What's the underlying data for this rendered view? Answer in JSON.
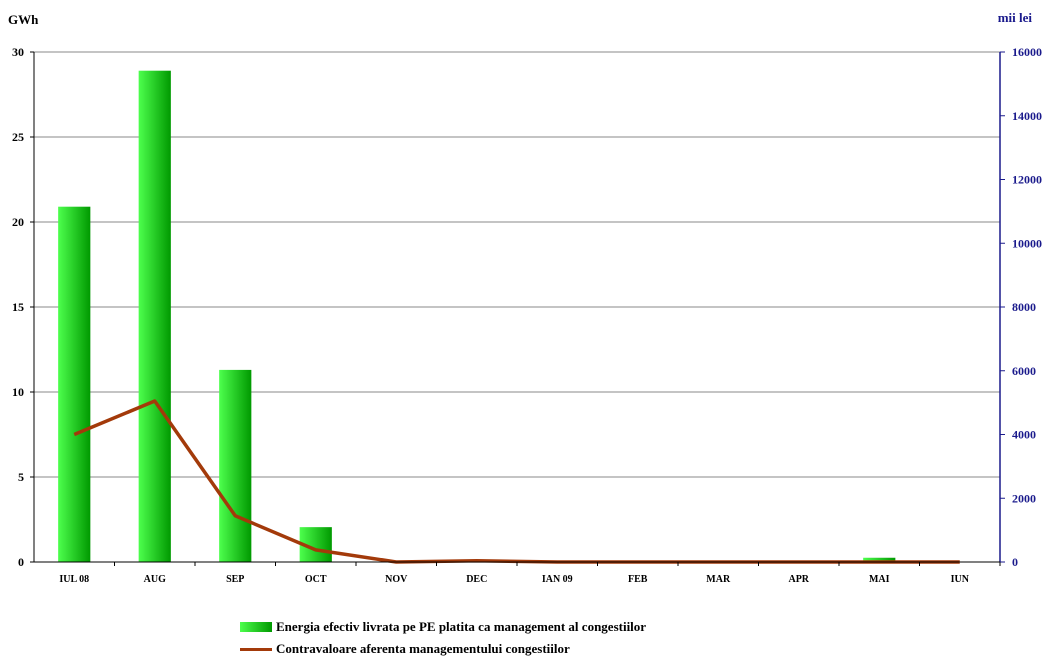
{
  "chart_data": {
    "type": "bar",
    "categories": [
      "IUL 08",
      "AUG",
      "SEP",
      "OCT",
      "NOV",
      "DEC",
      "IAN 09",
      "FEB",
      "MAR",
      "APR",
      "MAI",
      "IUN"
    ],
    "series": [
      {
        "name": "Energia efectiv livrata pe PE platita ca management al congestiilor",
        "type": "bar",
        "axis": "left",
        "values": [
          20.9,
          28.9,
          11.3,
          2.05,
          0,
          0,
          0,
          0,
          0,
          0,
          0.25,
          0
        ]
      },
      {
        "name": "Contravaloare aferenta managementului congestiilor",
        "type": "line",
        "axis": "right",
        "values": [
          4000,
          5050,
          1450,
          380,
          0,
          40,
          0,
          0,
          0,
          0,
          0,
          0
        ]
      }
    ],
    "yleft_unit": "GWh",
    "yright_unit": "mii lei",
    "ylim_left": [
      0,
      30
    ],
    "yticks_left": [
      0,
      5,
      10,
      15,
      20,
      25,
      30
    ],
    "ylim_right": [
      0,
      16000
    ],
    "yticks_right": [
      0,
      2000,
      4000,
      6000,
      8000,
      10000,
      12000,
      14000,
      16000
    ],
    "grid": true,
    "legend_position": "bottom",
    "colors": {
      "bar_light": "#4dff4d",
      "bar_dark": "#009900",
      "line": "#a33a0a",
      "right_axis": "#1a1a8c"
    }
  }
}
